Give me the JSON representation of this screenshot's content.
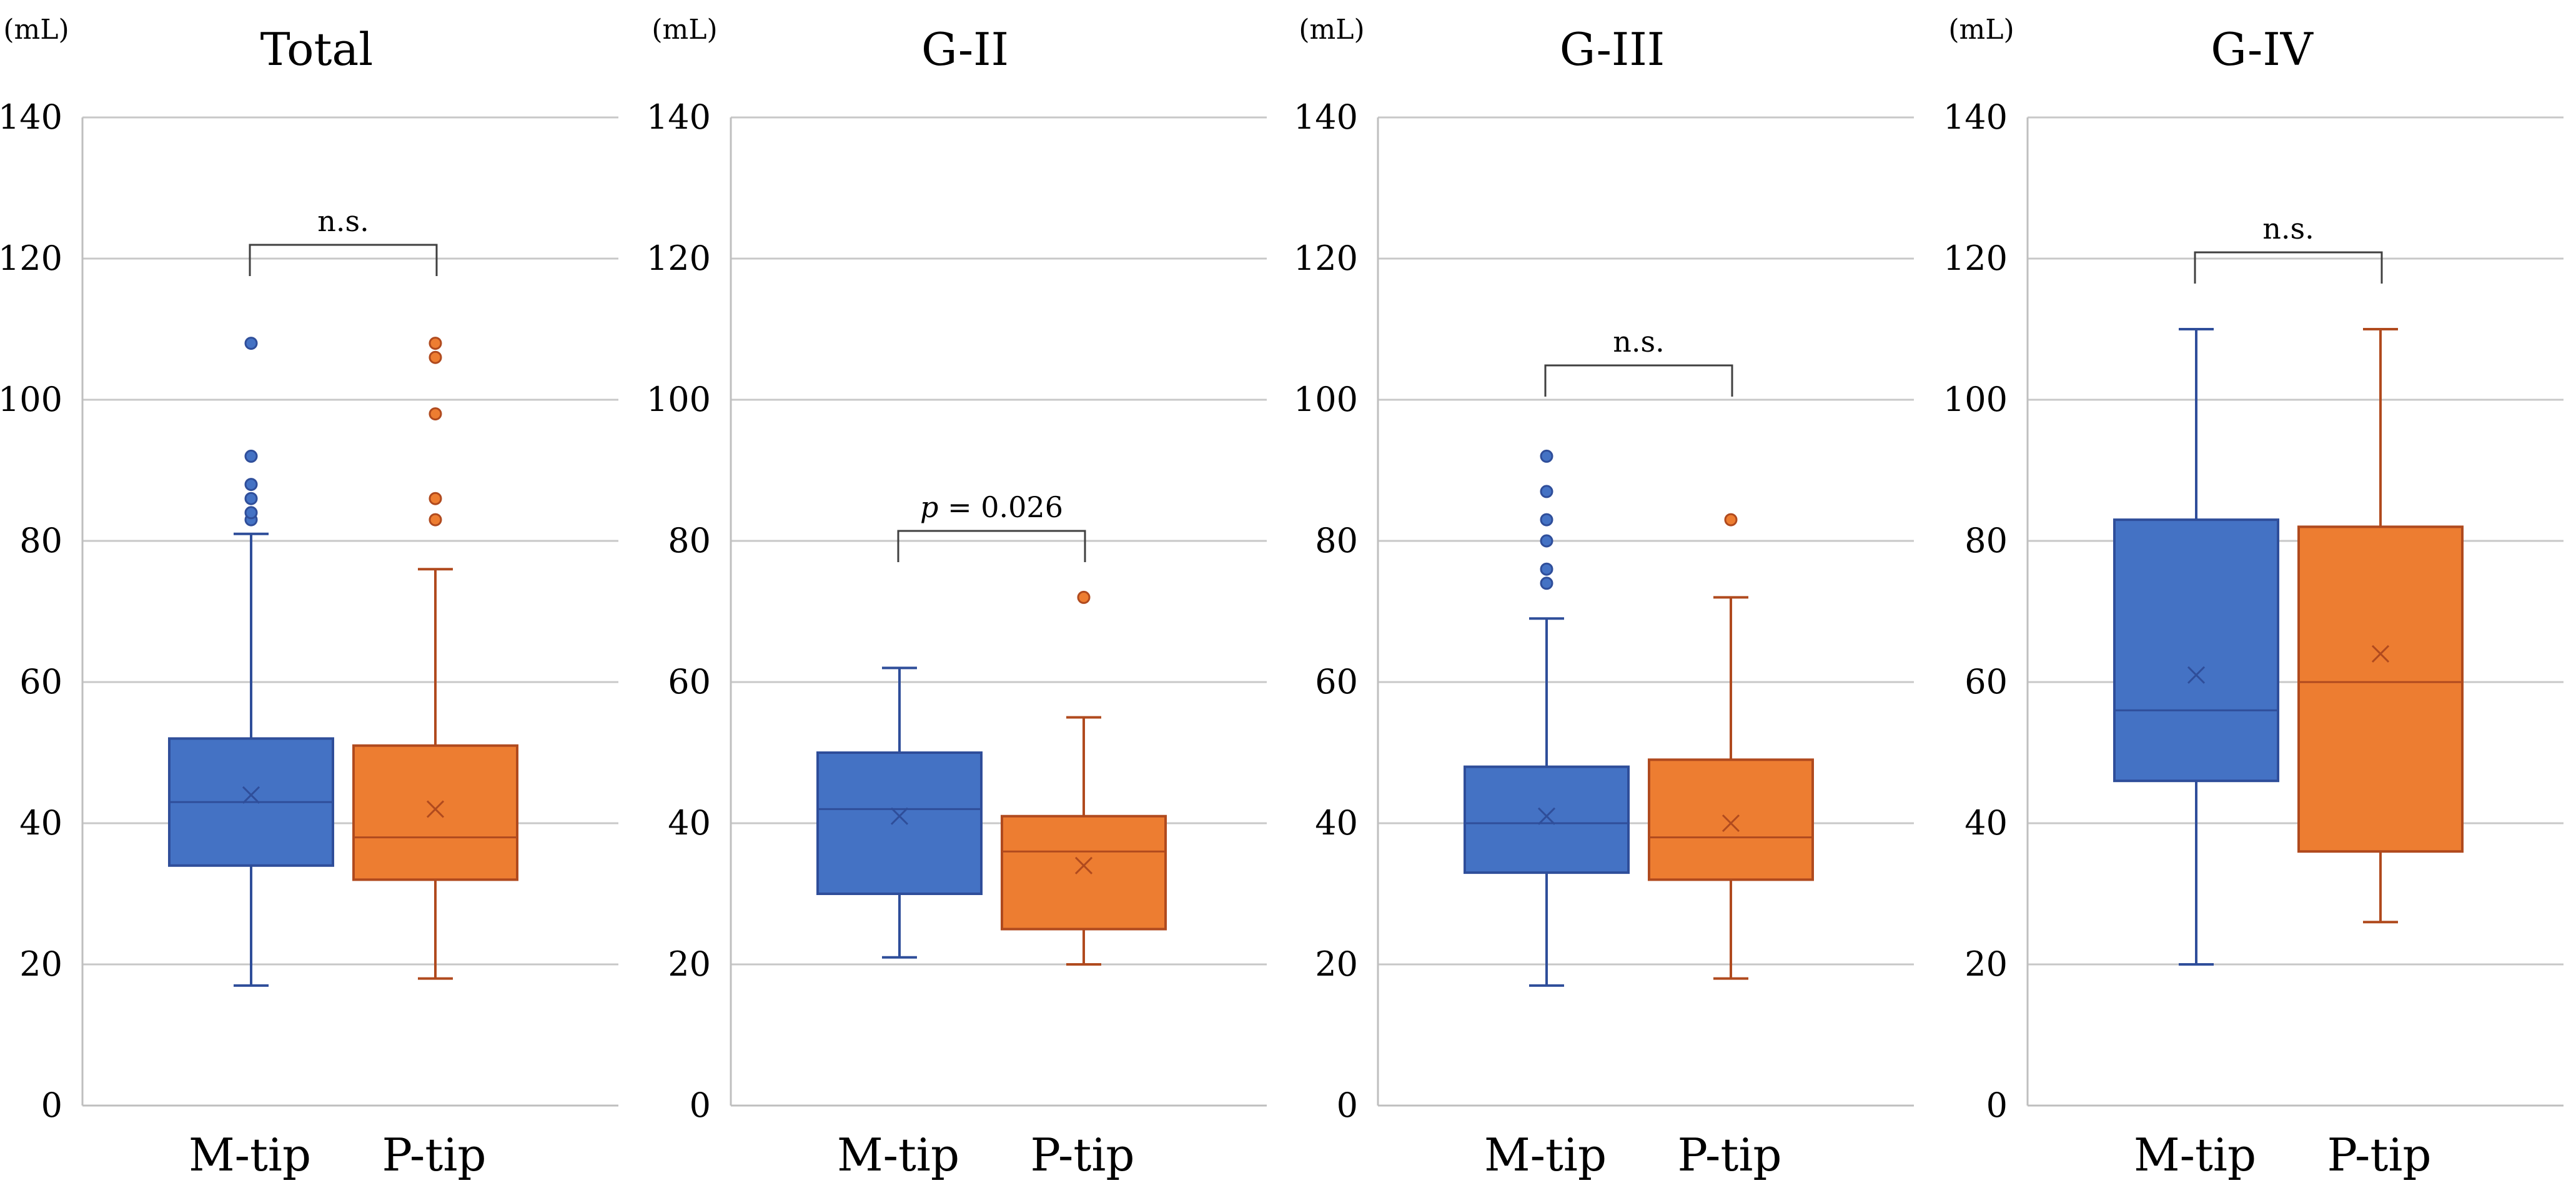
{
  "colors": {
    "m_fill": "#4472C4",
    "m_stroke": "#2F4E9A",
    "p_fill": "#ED7D31",
    "p_stroke": "#B04A1E",
    "grid": "#C8C8C8",
    "axis": "#BFBFBF",
    "bracket": "#404040"
  },
  "chart_data": [
    {
      "type": "box",
      "title": "Total",
      "unit_label": "(mL)",
      "ylim": [
        0,
        140
      ],
      "yticks": [
        "0",
        "20",
        "40",
        "60",
        "80",
        "100",
        "120",
        "140"
      ],
      "categories": [
        "M-tip",
        "P-tip"
      ],
      "series": [
        {
          "name": "M-tip",
          "min": 17,
          "q1": 34,
          "median": 43,
          "q3": 52,
          "max": 81,
          "mean": 44,
          "outliers": [
            83,
            84,
            86,
            88,
            92,
            108
          ]
        },
        {
          "name": "P-tip",
          "min": 18,
          "q1": 32,
          "median": 38,
          "q3": 51,
          "max": 76,
          "mean": 42,
          "outliers": [
            83,
            86,
            98,
            106,
            108
          ]
        }
      ],
      "annotation": {
        "text": "n.s.",
        "italic_prefix": ""
      }
    },
    {
      "type": "box",
      "title": "G-II",
      "unit_label": "(mL)",
      "ylim": [
        0,
        140
      ],
      "yticks": [
        "0",
        "20",
        "40",
        "60",
        "80",
        "100",
        "120",
        "140"
      ],
      "categories": [
        "M-tip",
        "P-tip"
      ],
      "series": [
        {
          "name": "M-tip",
          "min": 21,
          "q1": 30,
          "median": 42,
          "q3": 50,
          "max": 62,
          "mean": 41,
          "outliers": []
        },
        {
          "name": "P-tip",
          "min": 20,
          "q1": 25,
          "median": 36,
          "q3": 41,
          "max": 55,
          "mean": 34,
          "outliers": [
            72
          ]
        }
      ],
      "annotation": {
        "text": " = 0.026",
        "italic_prefix": "p"
      }
    },
    {
      "type": "box",
      "title": "G-III",
      "unit_label": "(mL)",
      "ylim": [
        0,
        140
      ],
      "yticks": [
        "0",
        "20",
        "40",
        "60",
        "80",
        "100",
        "120",
        "140"
      ],
      "categories": [
        "M-tip",
        "P-tip"
      ],
      "series": [
        {
          "name": "M-tip",
          "min": 17,
          "q1": 33,
          "median": 40,
          "q3": 48,
          "max": 69,
          "mean": 41,
          "outliers": [
            74,
            76,
            80,
            83,
            87,
            92
          ]
        },
        {
          "name": "P-tip",
          "min": 18,
          "q1": 32,
          "median": 38,
          "q3": 49,
          "max": 72,
          "mean": 40,
          "outliers": [
            83
          ]
        }
      ],
      "annotation": {
        "text": "n.s.",
        "italic_prefix": ""
      }
    },
    {
      "type": "box",
      "title": "G-IV",
      "unit_label": "(mL)",
      "ylim": [
        0,
        140
      ],
      "yticks": [
        "0",
        "20",
        "40",
        "60",
        "80",
        "100",
        "120",
        "140"
      ],
      "categories": [
        "M-tip",
        "P-tip"
      ],
      "series": [
        {
          "name": "M-tip",
          "min": 20,
          "q1": 46,
          "median": 56,
          "q3": 83,
          "max": 110,
          "mean": 61,
          "outliers": []
        },
        {
          "name": "P-tip",
          "min": 26,
          "q1": 36,
          "median": 60,
          "q3": 82,
          "max": 110,
          "mean": 64,
          "outliers": []
        }
      ],
      "annotation": {
        "text": "n.s.",
        "italic_prefix": ""
      }
    }
  ]
}
